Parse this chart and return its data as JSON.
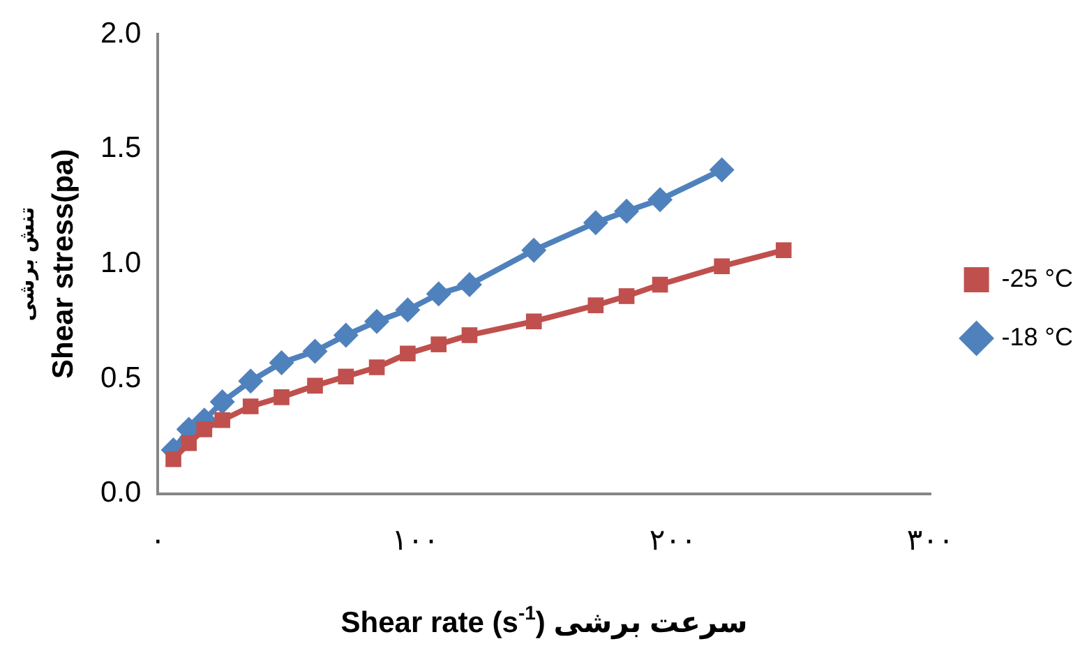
{
  "chart_data": {
    "type": "line",
    "xlabel": "Shear rate (s$^{-1}$) سرعت برشی",
    "ylabel": "تنش برشی\nShear stress(pa)",
    "xlim": [
      0,
      300
    ],
    "xticks": [
      {
        "value": 0,
        "label": "٠"
      },
      {
        "value": 100,
        "label": "١٠٠"
      },
      {
        "value": 200,
        "label": "٢٠٠"
      },
      {
        "value": 300,
        "label": "٣٠٠"
      }
    ],
    "ylim": [
      0,
      2
    ],
    "yticks": [
      {
        "value": 0,
        "label": "0.0"
      },
      {
        "value": 0.5,
        "label": "0.5"
      },
      {
        "value": 1,
        "label": "1.0"
      },
      {
        "value": 1.5,
        "label": "1.5"
      },
      {
        "value": 2,
        "label": "2.0"
      }
    ],
    "grid": false,
    "legend": "right",
    "line_style": "solid",
    "series": [
      {
        "name": "-25 °C",
        "color": "#c0504d",
        "marker": "square",
        "x": [
          6,
          12,
          18,
          25,
          36,
          48,
          61,
          73,
          85,
          97,
          109,
          121,
          146,
          170,
          182,
          195,
          219,
          243
        ],
        "values": [
          0.15,
          0.22,
          0.28,
          0.32,
          0.38,
          0.42,
          0.47,
          0.51,
          0.55,
          0.61,
          0.65,
          0.69,
          0.75,
          0.82,
          0.86,
          0.91,
          0.99,
          1.06
        ]
      },
      {
        "name": "-18 °C",
        "color": "#4f81bd",
        "marker": "diamond",
        "x": [
          6,
          12,
          18,
          25,
          36,
          48,
          61,
          73,
          85,
          97,
          109,
          121,
          146,
          170,
          182,
          195,
          219
        ],
        "values": [
          0.19,
          0.28,
          0.32,
          0.4,
          0.49,
          0.57,
          0.62,
          0.69,
          0.75,
          0.8,
          0.87,
          0.91,
          1.06,
          1.18,
          1.23,
          1.28,
          1.41
        ]
      }
    ]
  }
}
